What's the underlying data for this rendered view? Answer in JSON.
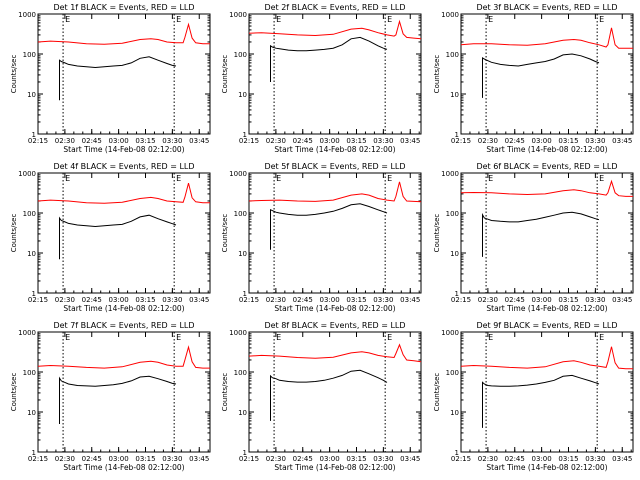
{
  "common": {
    "xlabel": "Start Time (14-Feb-08 02:12:00)",
    "ylabel": "Counts/sec",
    "x_ticks": [
      "02:15",
      "02:30",
      "02:45",
      "03:00",
      "03:15",
      "03:30",
      "03:45"
    ],
    "x_tick_minutes": [
      3,
      18,
      33,
      48,
      63,
      78,
      93
    ],
    "y_ticks": [
      "1",
      "10",
      "100",
      "1000"
    ],
    "y_tick_values": [
      1,
      10,
      100,
      1000
    ],
    "xlim_minutes": [
      3,
      99
    ],
    "ylim": [
      1,
      1000
    ],
    "yscale": "log",
    "dotted_vlines_minutes": [
      17,
      79
    ],
    "series_colors": {
      "black": "#000000",
      "red": "#ff0000"
    }
  },
  "chart_data": [
    {
      "type": "line",
      "title": "Det 1f BLACK = Events, RED = LLD",
      "markers": [
        "E",
        "E"
      ],
      "series": [
        {
          "color": "#ff0000",
          "x": [
            3,
            10,
            20,
            30,
            40,
            50,
            60,
            66,
            70,
            75,
            80,
            84,
            85,
            87,
            89,
            91,
            95,
            99
          ],
          "values": [
            200,
            210,
            200,
            180,
            175,
            185,
            230,
            240,
            230,
            200,
            190,
            190,
            260,
            550,
            250,
            190,
            180,
            180
          ]
        },
        {
          "color": "#000000",
          "x": [
            15,
            15,
            16,
            18,
            20,
            25,
            30,
            35,
            40,
            45,
            50,
            55,
            60,
            65,
            70,
            75,
            78,
            80
          ],
          "values": [
            7,
            70,
            65,
            60,
            55,
            50,
            48,
            46,
            48,
            50,
            52,
            60,
            78,
            85,
            70,
            58,
            52,
            50
          ]
        }
      ]
    },
    {
      "type": "line",
      "title": "Det 2f BLACK = Events, RED = LLD",
      "markers": [
        "E",
        "E"
      ],
      "series": [
        {
          "color": "#ff0000",
          "x": [
            3,
            10,
            20,
            30,
            40,
            50,
            60,
            66,
            70,
            75,
            80,
            84,
            85,
            87,
            89,
            91,
            95,
            99
          ],
          "values": [
            330,
            340,
            320,
            300,
            290,
            310,
            420,
            440,
            400,
            340,
            300,
            280,
            300,
            650,
            320,
            260,
            250,
            240
          ]
        },
        {
          "color": "#000000",
          "x": [
            15,
            15,
            16,
            18,
            20,
            25,
            30,
            35,
            40,
            45,
            50,
            55,
            60,
            65,
            70,
            75,
            78,
            80
          ],
          "values": [
            20,
            160,
            150,
            140,
            135,
            125,
            120,
            120,
            125,
            130,
            140,
            170,
            240,
            260,
            210,
            160,
            140,
            130
          ]
        }
      ]
    },
    {
      "type": "line",
      "title": "Det 3f BLACK = Events, RED = LLD",
      "markers": [
        "E",
        "E"
      ],
      "series": [
        {
          "color": "#ff0000",
          "x": [
            3,
            10,
            20,
            30,
            40,
            50,
            60,
            66,
            70,
            75,
            80,
            84,
            85,
            87,
            89,
            91,
            95,
            99
          ],
          "values": [
            170,
            180,
            180,
            170,
            165,
            180,
            220,
            230,
            220,
            190,
            170,
            150,
            170,
            450,
            170,
            140,
            140,
            140
          ]
        },
        {
          "color": "#000000",
          "x": [
            15,
            15,
            16,
            18,
            20,
            25,
            30,
            35,
            40,
            45,
            50,
            55,
            60,
            65,
            70,
            75,
            78,
            80
          ],
          "values": [
            8,
            80,
            75,
            68,
            62,
            55,
            52,
            50,
            55,
            60,
            65,
            75,
            95,
            100,
            90,
            75,
            65,
            60
          ]
        }
      ]
    },
    {
      "type": "line",
      "title": "Det 4f BLACK = Events, RED = LLD",
      "markers": [
        "E",
        "E"
      ],
      "series": [
        {
          "color": "#ff0000",
          "x": [
            3,
            10,
            20,
            30,
            40,
            50,
            60,
            66,
            70,
            75,
            80,
            84,
            85,
            87,
            89,
            91,
            95,
            99
          ],
          "values": [
            200,
            210,
            200,
            180,
            175,
            185,
            230,
            245,
            230,
            200,
            190,
            185,
            250,
            560,
            240,
            190,
            180,
            180
          ]
        },
        {
          "color": "#000000",
          "x": [
            15,
            15,
            16,
            18,
            20,
            25,
            30,
            35,
            40,
            45,
            50,
            55,
            60,
            65,
            70,
            75,
            78,
            80
          ],
          "values": [
            7,
            75,
            65,
            60,
            55,
            50,
            48,
            46,
            48,
            50,
            52,
            62,
            80,
            88,
            72,
            60,
            54,
            50
          ]
        }
      ]
    },
    {
      "type": "line",
      "title": "Det 5f BLACK = Events, RED = LLD",
      "markers": [
        "E",
        "E"
      ],
      "series": [
        {
          "color": "#ff0000",
          "x": [
            3,
            10,
            20,
            30,
            40,
            50,
            60,
            66,
            70,
            75,
            80,
            84,
            85,
            87,
            89,
            91,
            95,
            99
          ],
          "values": [
            200,
            205,
            210,
            200,
            195,
            210,
            280,
            300,
            280,
            230,
            210,
            200,
            260,
            600,
            260,
            200,
            195,
            190
          ]
        },
        {
          "color": "#000000",
          "x": [
            15,
            15,
            16,
            18,
            20,
            25,
            30,
            35,
            40,
            45,
            50,
            55,
            60,
            65,
            70,
            75,
            78,
            80
          ],
          "values": [
            12,
            120,
            115,
            105,
            100,
            92,
            88,
            88,
            92,
            100,
            110,
            130,
            160,
            170,
            145,
            120,
            108,
            100
          ]
        }
      ]
    },
    {
      "type": "line",
      "title": "Det 6f BLACK = Events, RED = LLD",
      "markers": [
        "E",
        "E"
      ],
      "series": [
        {
          "color": "#ff0000",
          "x": [
            3,
            10,
            20,
            30,
            40,
            50,
            60,
            66,
            70,
            75,
            80,
            84,
            85,
            87,
            89,
            91,
            95,
            99
          ],
          "values": [
            320,
            325,
            320,
            300,
            290,
            300,
            360,
            380,
            360,
            320,
            300,
            280,
            320,
            620,
            320,
            270,
            260,
            260
          ]
        },
        {
          "color": "#000000",
          "x": [
            15,
            15,
            16,
            18,
            20,
            25,
            30,
            35,
            40,
            45,
            50,
            55,
            60,
            65,
            70,
            75,
            78,
            80
          ],
          "values": [
            8,
            90,
            75,
            70,
            65,
            62,
            60,
            60,
            65,
            70,
            78,
            88,
            100,
            105,
            95,
            80,
            72,
            68
          ]
        }
      ]
    },
    {
      "type": "line",
      "title": "Det 7f BLACK = Events, RED = LLD",
      "markers": [
        "E",
        "E"
      ],
      "series": [
        {
          "color": "#ff0000",
          "x": [
            3,
            10,
            20,
            30,
            40,
            50,
            60,
            66,
            70,
            75,
            80,
            84,
            85,
            87,
            89,
            91,
            95,
            99
          ],
          "values": [
            140,
            145,
            140,
            130,
            125,
            135,
            175,
            185,
            175,
            150,
            140,
            140,
            200,
            420,
            180,
            130,
            125,
            125
          ]
        },
        {
          "color": "#000000",
          "x": [
            15,
            15,
            16,
            18,
            20,
            25,
            30,
            35,
            40,
            45,
            50,
            55,
            60,
            65,
            70,
            75,
            78,
            80
          ],
          "values": [
            5,
            70,
            60,
            55,
            50,
            46,
            45,
            44,
            46,
            48,
            52,
            60,
            75,
            78,
            68,
            58,
            52,
            50
          ]
        }
      ]
    },
    {
      "type": "line",
      "title": "Det 8f BLACK = Events, RED = LLD",
      "markers": [
        "E",
        "E"
      ],
      "series": [
        {
          "color": "#ff0000",
          "x": [
            3,
            10,
            20,
            30,
            40,
            50,
            60,
            66,
            70,
            75,
            80,
            84,
            85,
            87,
            89,
            91,
            95,
            99
          ],
          "values": [
            250,
            260,
            250,
            230,
            220,
            235,
            300,
            320,
            300,
            260,
            240,
            230,
            290,
            480,
            270,
            200,
            190,
            180
          ]
        },
        {
          "color": "#000000",
          "x": [
            15,
            15,
            16,
            18,
            20,
            25,
            30,
            35,
            40,
            45,
            50,
            55,
            60,
            65,
            70,
            75,
            78,
            80
          ],
          "values": [
            6,
            80,
            72,
            68,
            62,
            58,
            56,
            56,
            58,
            62,
            70,
            82,
            105,
            110,
            90,
            72,
            62,
            55
          ]
        }
      ]
    },
    {
      "type": "line",
      "title": "Det 9f BLACK = Events, RED = LLD",
      "markers": [
        "E",
        "E"
      ],
      "series": [
        {
          "color": "#ff0000",
          "x": [
            3,
            10,
            20,
            30,
            40,
            50,
            60,
            66,
            70,
            75,
            80,
            84,
            85,
            87,
            89,
            91,
            95,
            99
          ],
          "values": [
            140,
            145,
            140,
            130,
            125,
            135,
            180,
            190,
            175,
            150,
            140,
            130,
            180,
            430,
            170,
            125,
            120,
            120
          ]
        },
        {
          "color": "#000000",
          "x": [
            15,
            15,
            16,
            18,
            20,
            25,
            30,
            35,
            40,
            45,
            50,
            55,
            60,
            65,
            70,
            75,
            78,
            80
          ],
          "values": [
            4,
            55,
            50,
            46,
            45,
            44,
            44,
            45,
            47,
            50,
            55,
            62,
            78,
            82,
            70,
            60,
            54,
            50
          ]
        }
      ]
    }
  ]
}
